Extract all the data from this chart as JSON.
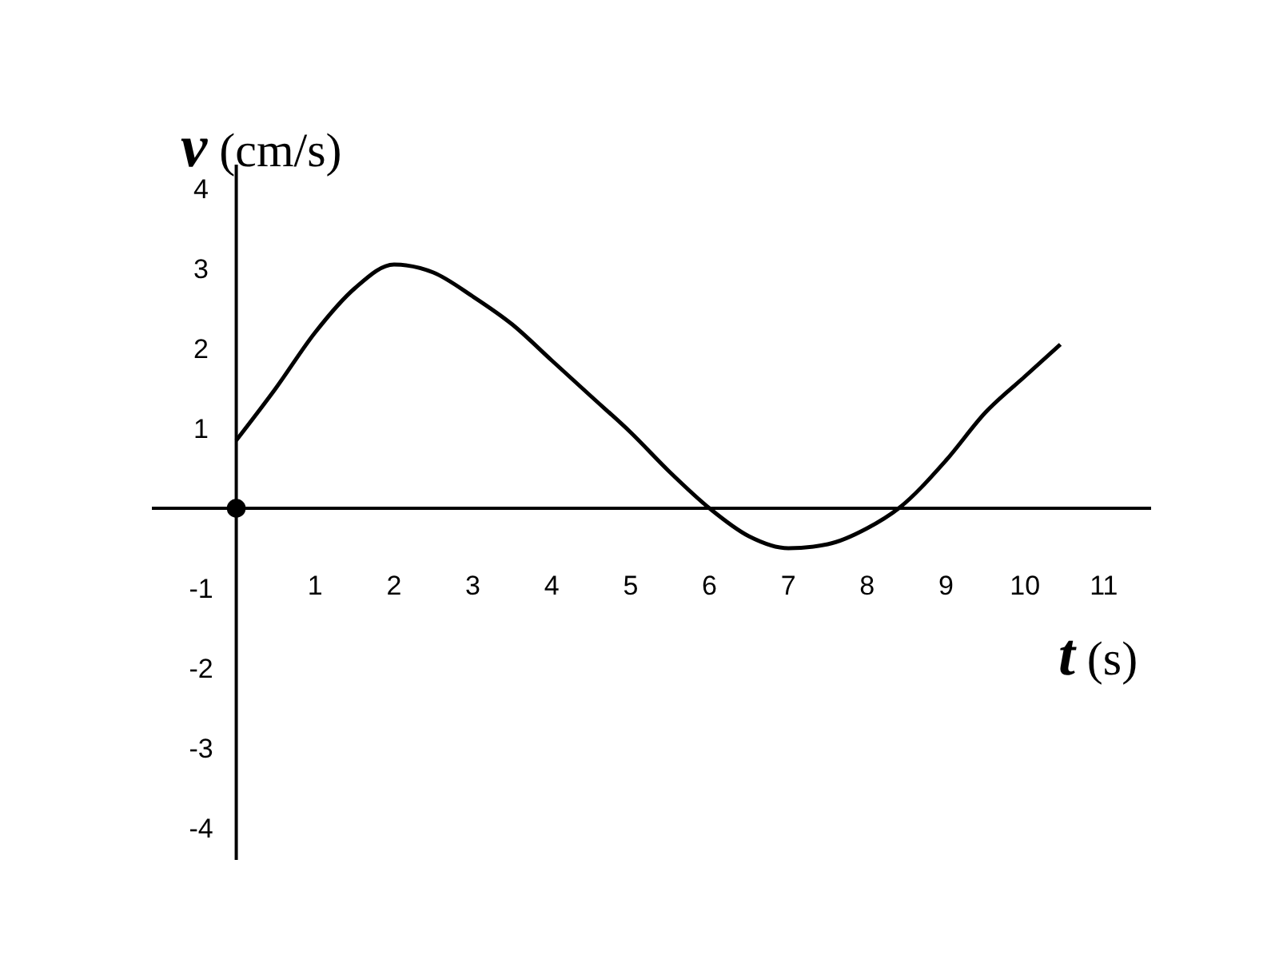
{
  "chart_data": {
    "type": "line",
    "xlabel": "t (s)",
    "ylabel": "v (cm/s)",
    "xlim": [
      -1.07,
      11.6
    ],
    "ylim": [
      -4.4,
      4.3
    ],
    "xticks": [
      1,
      2,
      3,
      4,
      5,
      6,
      7,
      8,
      9,
      10,
      11
    ],
    "yticks": [
      -4,
      -3,
      -2,
      -1,
      1,
      2,
      3,
      4
    ],
    "grid": false,
    "series": [
      {
        "color": "#000000",
        "x": [
          0,
          0.5,
          1,
          1.5,
          2,
          2.5,
          3,
          3.5,
          4,
          4.5,
          5,
          5.5,
          6,
          6.5,
          7,
          7.5,
          8,
          8.4,
          9,
          9.5,
          10,
          10.45
        ],
        "values": [
          0.85,
          1.5,
          2.2,
          2.75,
          3.05,
          2.95,
          2.65,
          2.3,
          1.85,
          1.4,
          0.95,
          0.45,
          0,
          -0.35,
          -0.5,
          -0.45,
          -0.25,
          0,
          0.6,
          1.2,
          1.65,
          2.05
        ]
      },
      {
        "type": "scatter",
        "color": "#000000",
        "marker": "circle",
        "x": [
          0
        ],
        "values": [
          0
        ]
      }
    ]
  }
}
